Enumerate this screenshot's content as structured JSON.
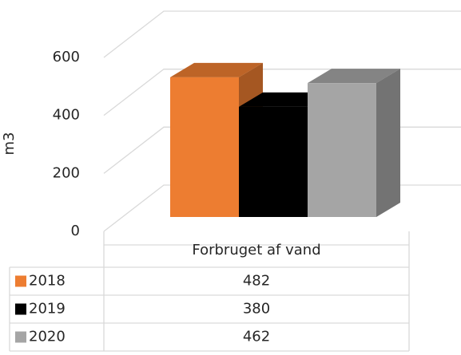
{
  "chart_data": {
    "type": "bar3d",
    "y_axis_label": "m3",
    "categories": [
      "Forbruget af vand"
    ],
    "series": [
      {
        "name": "2018",
        "color": "#ED7D31",
        "values": [
          482
        ]
      },
      {
        "name": "2019",
        "color": "#000000",
        "values": [
          380
        ]
      },
      {
        "name": "2020",
        "color": "#A5A5A5",
        "values": [
          462
        ]
      }
    ],
    "ylim": [
      0,
      600
    ],
    "yticks": [
      0,
      200,
      400,
      600
    ],
    "grid": true,
    "data_table": true
  }
}
